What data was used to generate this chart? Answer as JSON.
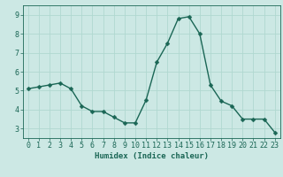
{
  "x": [
    0,
    1,
    2,
    3,
    4,
    5,
    6,
    7,
    8,
    9,
    10,
    11,
    12,
    13,
    14,
    15,
    16,
    17,
    18,
    19,
    20,
    21,
    22,
    23
  ],
  "y": [
    5.1,
    5.2,
    5.3,
    5.4,
    5.1,
    4.2,
    3.9,
    3.9,
    3.6,
    3.3,
    3.3,
    4.5,
    6.5,
    7.5,
    8.8,
    8.9,
    8.0,
    5.3,
    4.45,
    4.2,
    3.5,
    3.5,
    3.5,
    2.8
  ],
  "xlabel": "Humidex (Indice chaleur)",
  "bg_color": "#cce8e4",
  "line_color": "#1a6655",
  "grid_color": "#b0d8d0",
  "xlim": [
    -0.5,
    23.5
  ],
  "ylim": [
    2.5,
    9.5
  ],
  "yticks": [
    3,
    4,
    5,
    6,
    7,
    8,
    9
  ],
  "xticks": [
    0,
    1,
    2,
    3,
    4,
    5,
    6,
    7,
    8,
    9,
    10,
    11,
    12,
    13,
    14,
    15,
    16,
    17,
    18,
    19,
    20,
    21,
    22,
    23
  ],
  "xlabel_fontsize": 6.5,
  "tick_fontsize": 6.0,
  "line_width": 1.0,
  "marker_size": 2.5
}
